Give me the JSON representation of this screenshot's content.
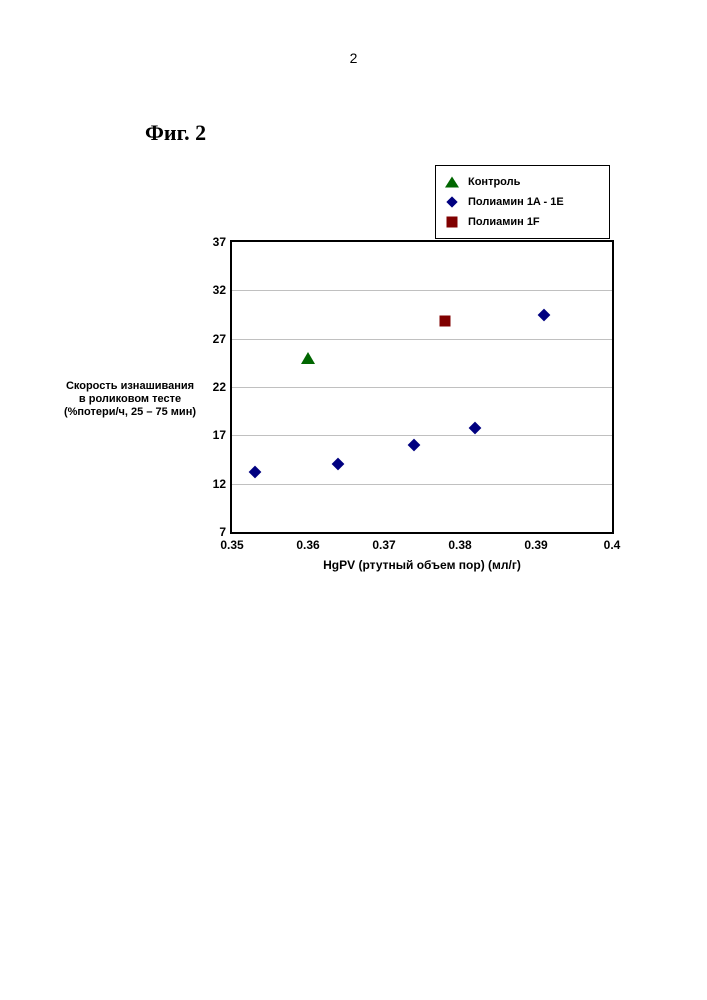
{
  "page_number": "2",
  "figure_title": "Фиг. 2",
  "chart": {
    "type": "scatter",
    "background_color": "#ffffff",
    "border_color": "#000000",
    "grid_color": "#c0c0c0",
    "x_axis": {
      "title": "HgPV (ртутный объем пор) (мл/г)",
      "min": 0.35,
      "max": 0.4,
      "ticks": [
        0.35,
        0.36,
        0.37,
        0.38,
        0.39,
        0.4
      ],
      "tick_labels": [
        "0.35",
        "0.36",
        "0.37",
        "0.38",
        "0.39",
        "0.4"
      ],
      "label_fontsize": 12
    },
    "y_axis": {
      "title_lines": [
        "Скорость изнашивания",
        "в роликовом тесте",
        "(%потери/ч, 25 – 75 мин)"
      ],
      "min": 7,
      "max": 37,
      "ticks": [
        7,
        12,
        17,
        22,
        27,
        32,
        37
      ],
      "tick_labels": [
        "7",
        "12",
        "17",
        "22",
        "27",
        "32",
        "37"
      ],
      "label_fontsize": 12
    },
    "legend": {
      "position": "top-right",
      "items": [
        {
          "symbol": "triangle",
          "color": "#006600",
          "label": "Контроль"
        },
        {
          "symbol": "diamond",
          "color": "#000080",
          "label": "Полиамин 1A - 1E"
        },
        {
          "symbol": "square",
          "color": "#800000",
          "label": "Полиамин 1F"
        }
      ]
    },
    "series": [
      {
        "name": "Контроль",
        "symbol": "triangle",
        "color": "#006600",
        "marker_size": 12,
        "points": [
          {
            "x": 0.36,
            "y": 25.0
          }
        ]
      },
      {
        "name": "Полиамин 1A - 1E",
        "symbol": "diamond",
        "color": "#000080",
        "marker_size": 12,
        "points": [
          {
            "x": 0.353,
            "y": 13.2
          },
          {
            "x": 0.364,
            "y": 14.0
          },
          {
            "x": 0.374,
            "y": 16.0
          },
          {
            "x": 0.382,
            "y": 17.8
          },
          {
            "x": 0.391,
            "y": 29.5
          }
        ]
      },
      {
        "name": "Полиамин 1F",
        "symbol": "square",
        "color": "#800000",
        "marker_size": 11,
        "points": [
          {
            "x": 0.378,
            "y": 28.8
          }
        ]
      }
    ]
  }
}
